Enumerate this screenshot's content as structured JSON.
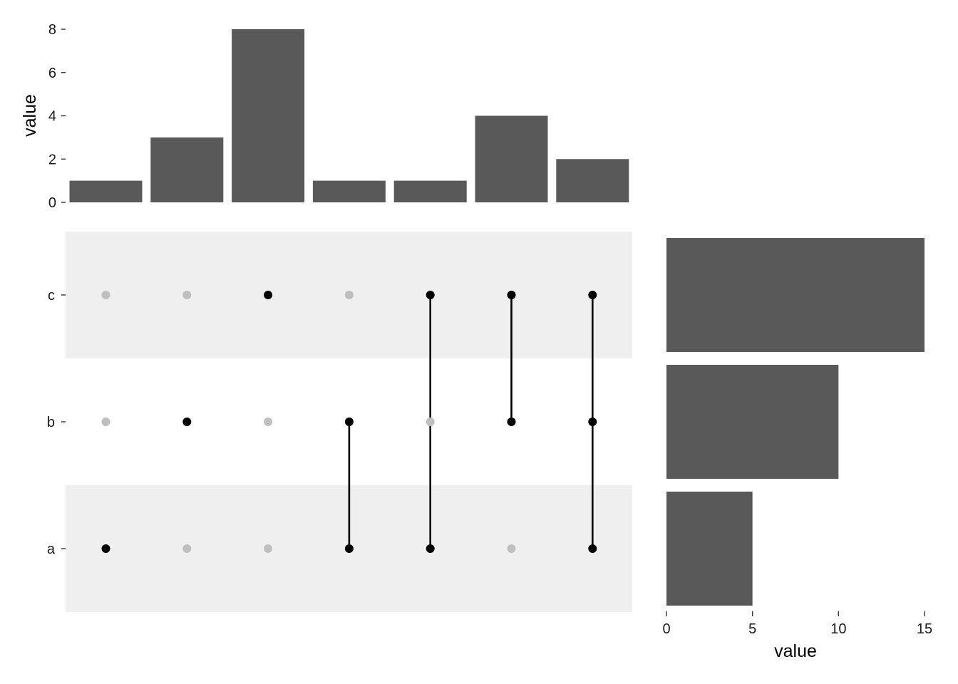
{
  "chart_data": [
    {
      "type": "bar",
      "panel": "intersection-sizes",
      "categories": [
        "a",
        "b",
        "c",
        "a,b",
        "a,c",
        "b,c",
        "a,b,c"
      ],
      "values": [
        1,
        3,
        8,
        1,
        1,
        4,
        2
      ],
      "ylabel": "value",
      "yticks": [
        "0",
        "2",
        "4",
        "6",
        "8"
      ],
      "ylim": [
        0,
        8
      ],
      "grid": false,
      "bar_color": "#595959"
    },
    {
      "type": "matrix",
      "panel": "set-membership",
      "sets": [
        "c",
        "b",
        "a"
      ],
      "columns": [
        [
          "a"
        ],
        [
          "b"
        ],
        [
          "c"
        ],
        [
          "a",
          "b"
        ],
        [
          "a",
          "c"
        ],
        [
          "b",
          "c"
        ],
        [
          "a",
          "b",
          "c"
        ]
      ],
      "active_color": "#000000",
      "inactive_color": "#bfbfbf",
      "stripe_color": "#efefef"
    },
    {
      "type": "bar",
      "panel": "set-sizes",
      "orientation": "horizontal",
      "categories": [
        "c",
        "b",
        "a"
      ],
      "values": [
        15,
        10,
        5
      ],
      "xlabel": "value",
      "xticks": [
        "0",
        "5",
        "10",
        "15"
      ],
      "xlim": [
        0,
        15
      ],
      "grid": false,
      "bar_color": "#595959"
    }
  ]
}
